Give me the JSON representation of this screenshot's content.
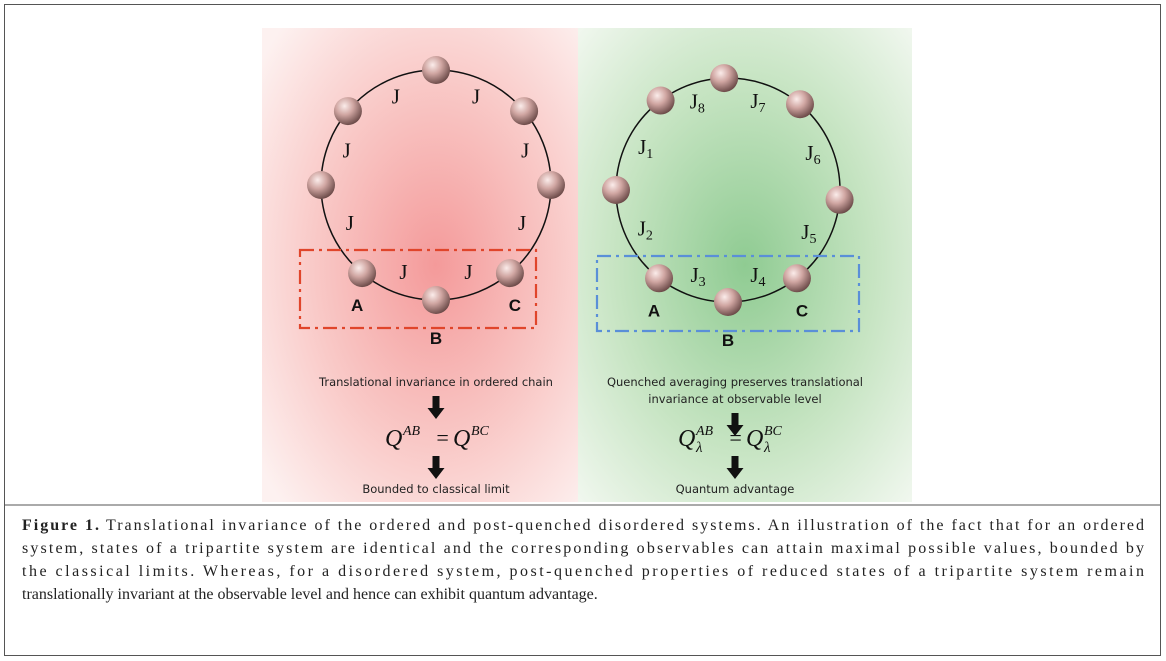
{
  "left_panel": {
    "bonds": [
      "J",
      "J",
      "J",
      "J",
      "J",
      "J",
      "J",
      "J"
    ],
    "sites": [
      "A",
      "B",
      "C"
    ],
    "description": [
      "Translational invariance in ordered chain"
    ],
    "equation": {
      "lhs": "Q",
      "lhs_sup": "AB",
      "equals": "=",
      "rhs": "Q",
      "rhs_sup": "BC"
    },
    "outcome": "Bounded to classical limit"
  },
  "right_panel": {
    "bonds": [
      {
        "base": "J",
        "sub": "1"
      },
      {
        "base": "J",
        "sub": "2"
      },
      {
        "base": "J",
        "sub": "3"
      },
      {
        "base": "J",
        "sub": "4"
      },
      {
        "base": "J",
        "sub": "5"
      },
      {
        "base": "J",
        "sub": "6"
      },
      {
        "base": "J",
        "sub": "7"
      },
      {
        "base": "J",
        "sub": "8"
      }
    ],
    "sites": [
      "A",
      "B",
      "C"
    ],
    "description": [
      "Quenched averaging preserves translational",
      "invariance at observable level"
    ],
    "equation": {
      "lhs": "Q",
      "lhs_sup": "AB",
      "lhs_sub": "λ",
      "equals": "=",
      "rhs": "Q",
      "rhs_sup": "BC",
      "rhs_sub": "λ"
    },
    "outcome": "Quantum advantage"
  },
  "caption": {
    "label": "Figure 1.",
    "lines": [
      "Translational invariance of the ordered and post-quenched disordered systems. An illustration of the fact that for an ordered",
      "system, states of a tripartite system are identical and the corresponding observables can attain maximal possible values, bounded by",
      "the classical limits. Whereas, for a disordered system, post-quenched properties of reduced states of a tripartite system remain",
      "translationally invariant at the observable level and hence can exhibit quantum advantage."
    ]
  }
}
